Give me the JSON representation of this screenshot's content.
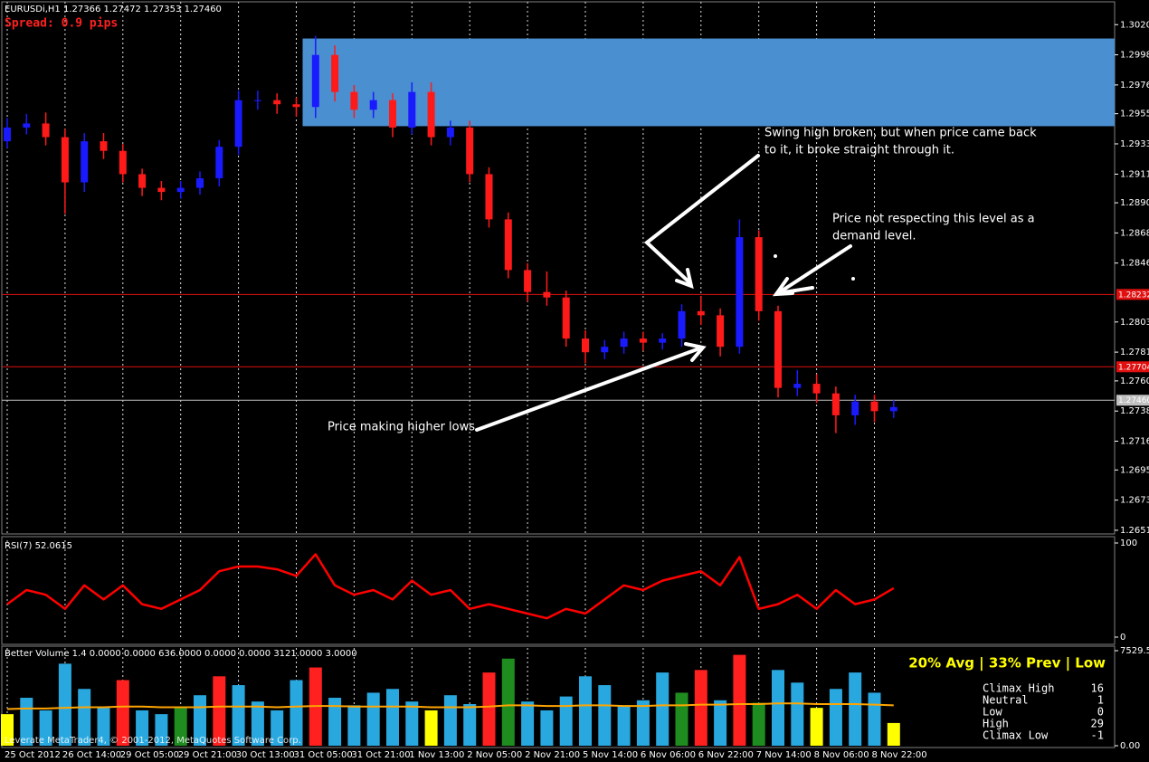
{
  "chart_data": [
    {
      "type": "candlestick",
      "title": "EURUSDi,H1  1.27366 1.27472 1.27353 1.27460",
      "subtitle": "Spread: 0.9 pips",
      "categories": [
        "25 Oct 2012",
        null,
        null,
        "26 Oct 14:00",
        null,
        null,
        "29 Oct 05:00",
        null,
        null,
        "29 Oct 21:00",
        null,
        null,
        "30 Oct 13:00",
        null,
        null,
        "31 Oct 05:00",
        null,
        null,
        "31 Oct 21:00",
        null,
        null,
        "1 Nov 13:00",
        null,
        null,
        "2 Nov 05:00",
        null,
        null,
        "2 Nov 21:00",
        null,
        null,
        "5 Nov 14:00",
        null,
        null,
        "6 Nov 06:00",
        null,
        null,
        "6 Nov 22:00",
        null,
        null,
        "7 Nov 14:00",
        null,
        null,
        "8 Nov 06:00",
        null,
        null,
        "8 Nov 22:00",
        null
      ],
      "open": [
        1.2935,
        1.2945,
        1.2948,
        1.2938,
        1.2905,
        1.2935,
        1.2928,
        1.2911,
        1.2901,
        1.2898,
        1.2901,
        1.2908,
        1.2931,
        1.2965,
        1.2965,
        1.2962,
        1.296,
        1.2998,
        1.2971,
        1.2958,
        1.2965,
        1.2945,
        1.2971,
        1.2938,
        1.2945,
        1.2911,
        1.2878,
        1.2841,
        1.2825,
        1.2821,
        1.2791,
        1.2781,
        1.2785,
        1.2791,
        1.2788,
        1.2791,
        1.2811,
        1.2808,
        1.2785,
        1.2865,
        1.2811,
        1.2755,
        1.2758,
        1.2751,
        1.2735,
        1.2745,
        1.2738
      ],
      "high": [
        1.2952,
        1.2955,
        1.2956,
        1.2944,
        1.2941,
        1.2941,
        1.2933,
        1.2915,
        1.2906,
        1.2906,
        1.2913,
        1.2936,
        1.2972,
        1.2972,
        1.297,
        1.2967,
        1.3012,
        1.3005,
        1.2976,
        1.2971,
        1.297,
        1.2978,
        1.2978,
        1.295,
        1.295,
        1.2916,
        1.2883,
        1.2846,
        1.284,
        1.2826,
        1.2797,
        1.279,
        1.2796,
        1.2796,
        1.2795,
        1.2816,
        1.2822,
        1.2813,
        1.2878,
        1.287,
        1.2815,
        1.2768,
        1.2765,
        1.2756,
        1.275,
        1.275,
        1.2746
      ],
      "low": [
        1.293,
        1.294,
        1.2932,
        1.2882,
        1.2898,
        1.2922,
        1.2905,
        1.2895,
        1.2892,
        1.2893,
        1.2896,
        1.2902,
        1.2925,
        1.2958,
        1.2955,
        1.2953,
        1.2952,
        1.2964,
        1.2952,
        1.2952,
        1.2938,
        1.294,
        1.2932,
        1.2932,
        1.2905,
        1.2872,
        1.2835,
        1.2818,
        1.2815,
        1.2785,
        1.2773,
        1.2776,
        1.278,
        1.2782,
        1.2783,
        1.2785,
        1.2801,
        1.2778,
        1.278,
        1.2804,
        1.2748,
        1.2749,
        1.2744,
        1.2722,
        1.2728,
        1.273,
        1.2733
      ],
      "close": [
        1.2945,
        1.2948,
        1.2938,
        1.2905,
        1.2935,
        1.2928,
        1.2911,
        1.2901,
        1.2898,
        1.2901,
        1.2908,
        1.2931,
        1.2965,
        1.2965,
        1.2962,
        1.296,
        1.2998,
        1.2971,
        1.2958,
        1.2965,
        1.2945,
        1.2971,
        1.2938,
        1.2945,
        1.2911,
        1.2878,
        1.2841,
        1.2825,
        1.2821,
        1.2791,
        1.2781,
        1.2785,
        1.2791,
        1.2788,
        1.2791,
        1.2811,
        1.2808,
        1.2785,
        1.2865,
        1.2811,
        1.2755,
        1.2758,
        1.2751,
        1.2735,
        1.2745,
        1.2738,
        1.2741
      ],
      "up_color": "#1a1aff",
      "down_color": "#ff1a1a",
      "ylim": [
        1.26484,
        1.30348
      ],
      "yticks": [
        1.30201,
        1.29981,
        1.29761,
        1.29551,
        1.29331,
        {
          "value": 1.2911,
          "label": "1.29110"
        },
        1.28901,
        1.28681,
        1.28461,
        1.28031,
        1.27811,
        1.27601,
        1.27381,
        1.27161,
        1.26951,
        1.26731,
        1.26511
      ],
      "levels": [
        {
          "value": 1.28232,
          "label": "1.28232",
          "color": "#e01010"
        },
        {
          "value": 1.27704,
          "label": "1.27704",
          "color": "#e01010"
        },
        {
          "value": 1.2746,
          "label": "1.27460",
          "color": "#c0c0c0"
        }
      ],
      "zone": {
        "top": 1.301,
        "bottom": 1.2946,
        "start_index": 15,
        "color": "#4a8fd0"
      },
      "annotations": [
        [
          "Swing high broken, but when price came back",
          "to it, it broke straight through it."
        ],
        [
          "Price not respecting this level as a",
          "demand level."
        ],
        [
          "Price making higher lows"
        ]
      ],
      "grid": true
    },
    {
      "type": "line",
      "title": "RSI(7) 52.0615",
      "values": [
        35,
        50,
        45,
        30,
        55,
        40,
        55,
        35,
        30,
        40,
        50,
        70,
        75,
        75,
        72,
        65,
        88,
        55,
        45,
        50,
        40,
        60,
        45,
        50,
        30,
        35,
        30,
        25,
        20,
        30,
        25,
        40,
        55,
        50,
        60,
        65,
        70,
        55,
        85,
        30,
        35,
        45,
        30,
        50,
        35,
        40,
        52
      ],
      "color": "#ff0000",
      "ylim": [
        0,
        100
      ],
      "yticks": [
        0,
        100
      ]
    },
    {
      "type": "bar",
      "title": "Better Volume 1.4 0.0000 0.0000 636.0000 0.0000 0.0000 3121.0000 3.0000",
      "values": [
        2500,
        3800,
        2800,
        6500,
        4500,
        3000,
        5200,
        2800,
        2500,
        3000,
        4000,
        5500,
        4800,
        3500,
        2800,
        5200,
        6200,
        3800,
        3200,
        4200,
        4500,
        3500,
        2800,
        4000,
        3300,
        5800,
        6900,
        3500,
        2800,
        3900,
        5500,
        4800,
        3200,
        3600,
        5800,
        4200,
        6000,
        3600,
        7200,
        3400,
        6000,
        5000,
        3000,
        4500,
        5800,
        4200,
        1800
      ],
      "colors": [
        "#ffff00",
        "#29a8e0",
        "#29a8e0",
        "#29a8e0",
        "#29a8e0",
        "#29a8e0",
        "#ff2020",
        "#29a8e0",
        "#29a8e0",
        "#1e8c1e",
        "#29a8e0",
        "#ff2020",
        "#29a8e0",
        "#29a8e0",
        "#29a8e0",
        "#29a8e0",
        "#ff2020",
        "#29a8e0",
        "#29a8e0",
        "#29a8e0",
        "#29a8e0",
        "#29a8e0",
        "#ffff00",
        "#29a8e0",
        "#29a8e0",
        "#ff2020",
        "#1e8c1e",
        "#29a8e0",
        "#29a8e0",
        "#29a8e0",
        "#29a8e0",
        "#29a8e0",
        "#29a8e0",
        "#29a8e0",
        "#29a8e0",
        "#1e8c1e",
        "#ff2020",
        "#29a8e0",
        "#ff2020",
        "#1e8c1e",
        "#29a8e0",
        "#29a8e0",
        "#ffff00",
        "#29a8e0",
        "#29a8e0",
        "#29a8e0",
        "#ffff00"
      ],
      "average": [
        2900,
        2950,
        2950,
        3000,
        3050,
        3050,
        3100,
        3100,
        3050,
        3050,
        3050,
        3100,
        3100,
        3100,
        3050,
        3100,
        3150,
        3150,
        3100,
        3100,
        3100,
        3100,
        3050,
        3050,
        3050,
        3100,
        3200,
        3200,
        3150,
        3150,
        3200,
        3200,
        3150,
        3150,
        3200,
        3200,
        3250,
        3250,
        3300,
        3300,
        3350,
        3350,
        3300,
        3300,
        3300,
        3250,
        3200
      ],
      "average_color": "#ffa500",
      "ylim": [
        0,
        7529.55
      ],
      "yticks": [
        7529.55,
        {
          "value": 0,
          "label": "0.00"
        }
      ],
      "summary": "20% Avg | 33% Prev | Low",
      "legend": [
        {
          "name": "Climax High",
          "color": "#ff2020",
          "value": 16
        },
        {
          "name": "Neutral",
          "color": "#29a8e0",
          "value": 1
        },
        {
          "name": "Low",
          "color": "#ffff00",
          "value": 0
        },
        {
          "name": "High",
          "color": "#1e8c1e",
          "value": 29
        },
        {
          "name": "Climax Low",
          "color": "#ffffff",
          "value": -1
        }
      ]
    }
  ],
  "footer": "Leverate MetaTrader4, © 2001-2012, MetaQuotes Software Corp."
}
